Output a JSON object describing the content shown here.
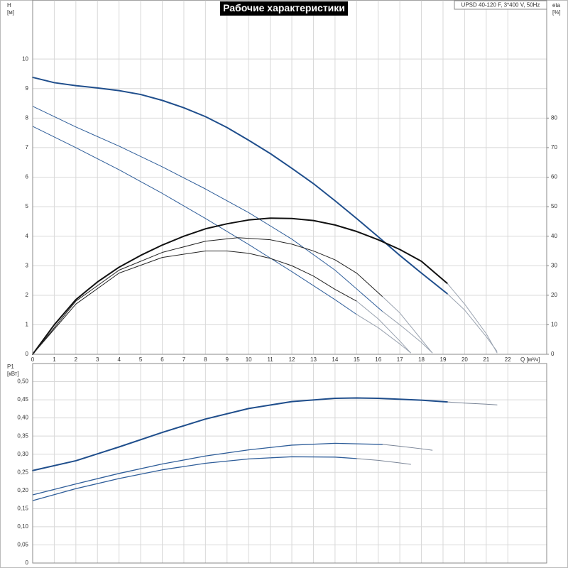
{
  "chart_data": [
    {
      "type": "line",
      "title": "Рабочие характеристики",
      "subtitle": "UPSD 40-120 F, 3*400 V, 50Hz",
      "xlabel": "Q [м³/ч]",
      "ylabel": "H",
      "yunit": "[м]",
      "y2label": "eta",
      "y2unit": "[%]",
      "xlim": [
        0,
        23.8
      ],
      "xticks": [
        0,
        1,
        2,
        3,
        4,
        5,
        6,
        7,
        8,
        9,
        10,
        11,
        12,
        13,
        14,
        15,
        16,
        17,
        18,
        19,
        20,
        21,
        22
      ],
      "ylim": [
        0,
        12
      ],
      "yticks": [
        0,
        1,
        2,
        3,
        4,
        5,
        6,
        7,
        8,
        9,
        10
      ],
      "y2lim": [
        0,
        120
      ],
      "y2ticks": [
        0,
        10,
        20,
        30,
        40,
        50,
        60,
        70,
        80
      ],
      "grid": true,
      "series": [
        {
          "color": "#1f4e8c",
          "width": 2,
          "x": [
            0,
            1,
            2,
            3,
            4,
            5,
            6,
            7,
            8,
            9,
            10,
            11,
            12,
            13,
            14,
            15,
            16,
            17,
            18,
            19.2
          ],
          "values": [
            9.38,
            9.2,
            9.1,
            9.02,
            8.93,
            8.8,
            8.6,
            8.35,
            8.05,
            7.68,
            7.25,
            6.8,
            6.3,
            5.78,
            5.2,
            4.6,
            3.98,
            3.35,
            2.75,
            2.05
          ]
        },
        {
          "color": "#9aa3b0",
          "width": 1,
          "x": [
            19.2,
            20,
            21,
            21.5
          ],
          "values": [
            2.05,
            1.5,
            0.6,
            0.1
          ]
        },
        {
          "color": "#2e5d99",
          "width": 1,
          "x": [
            0,
            2,
            4,
            6,
            8,
            10,
            12,
            14,
            16.2
          ],
          "values": [
            8.4,
            7.7,
            7.05,
            6.35,
            5.6,
            4.8,
            3.9,
            2.85,
            1.45
          ]
        },
        {
          "color": "#9aa3b0",
          "width": 1,
          "x": [
            16.2,
            17,
            18,
            18.5
          ],
          "values": [
            1.45,
            1.0,
            0.4,
            0.05
          ]
        },
        {
          "color": "#2e5d99",
          "width": 1,
          "x": [
            0,
            2,
            4,
            6,
            8,
            10,
            12,
            14,
            15
          ],
          "values": [
            7.72,
            7.0,
            6.25,
            5.45,
            4.6,
            3.72,
            2.8,
            1.85,
            1.35
          ]
        },
        {
          "color": "#9aa3b0",
          "width": 1,
          "x": [
            15,
            16,
            17,
            17.5
          ],
          "values": [
            1.35,
            0.9,
            0.35,
            0.05
          ]
        },
        {
          "color": "#111111",
          "width": 2,
          "axis": "y2",
          "x": [
            0,
            1,
            2,
            3,
            4,
            5,
            6,
            7,
            8,
            9,
            10,
            11,
            12,
            13,
            14,
            15,
            16,
            17,
            18,
            19.2
          ],
          "values": [
            0,
            10,
            18.5,
            24.5,
            29.5,
            33.5,
            37,
            40,
            42.5,
            44.2,
            45.5,
            46.1,
            46,
            45.3,
            43.8,
            41.6,
            38.8,
            35.5,
            31.5,
            24
          ]
        },
        {
          "color": "#9aa3b0",
          "width": 1,
          "axis": "y2",
          "x": [
            19.2,
            20,
            21,
            21.5
          ],
          "values": [
            24,
            17,
            7,
            0.5
          ]
        },
        {
          "color": "#222222",
          "width": 1,
          "axis": "y2",
          "x": [
            0,
            2,
            4,
            6,
            8,
            9.5,
            11,
            12,
            13,
            14,
            15,
            16.2
          ],
          "values": [
            0,
            18,
            28.5,
            34.5,
            38.3,
            39.5,
            38.8,
            37.3,
            35,
            32,
            27.5,
            19.5
          ]
        },
        {
          "color": "#9aa3b0",
          "width": 1,
          "axis": "y2",
          "x": [
            16.2,
            17,
            18,
            18.5
          ],
          "values": [
            19.5,
            14,
            5,
            0.5
          ]
        },
        {
          "color": "#222222",
          "width": 1,
          "axis": "y2",
          "x": [
            0,
            2,
            4,
            6,
            8,
            9,
            10,
            11,
            12,
            13,
            14,
            15
          ],
          "values": [
            0,
            17,
            27.5,
            32.8,
            35,
            35,
            34.2,
            32.5,
            30,
            26.5,
            22,
            18
          ]
        },
        {
          "color": "#9aa3b0",
          "width": 1,
          "axis": "y2",
          "x": [
            15,
            16,
            17,
            17.5
          ],
          "values": [
            18,
            12,
            4.5,
            0.5
          ]
        }
      ]
    },
    {
      "type": "line",
      "ylabel": "P1",
      "yunit": "[кВт]",
      "xlim": [
        0,
        23.8
      ],
      "ylim": [
        0,
        0.55
      ],
      "yticks": [
        0,
        {
          "value": 0.05,
          "label": "0,05"
        },
        {
          "value": 0.1,
          "label": "0,10"
        },
        {
          "value": 0.15,
          "label": "0,15"
        },
        {
          "value": 0.2,
          "label": "0,20"
        },
        {
          "value": 0.25,
          "label": "0,25"
        },
        {
          "value": 0.3,
          "label": "0,30"
        },
        {
          "value": 0.35,
          "label": "0,35"
        },
        {
          "value": 0.4,
          "label": "0,40"
        },
        {
          "value": 0.45,
          "label": "0,45"
        },
        {
          "value": 0.5,
          "label": "0,50"
        }
      ],
      "grid": true,
      "series": [
        {
          "color": "#1f4e8c",
          "width": 2,
          "x": [
            0,
            2,
            4,
            6,
            8,
            10,
            12,
            14,
            15,
            16,
            18,
            19.2
          ],
          "values": [
            0.255,
            0.282,
            0.32,
            0.36,
            0.397,
            0.426,
            0.445,
            0.454,
            0.455,
            0.454,
            0.449,
            0.444
          ]
        },
        {
          "color": "#7a8597",
          "width": 1,
          "x": [
            19.2,
            20,
            21,
            21.5
          ],
          "values": [
            0.444,
            0.441,
            0.438,
            0.436
          ]
        },
        {
          "color": "#2e5d99",
          "width": 1.3,
          "x": [
            0,
            2,
            4,
            6,
            8,
            10,
            12,
            14,
            16.2
          ],
          "values": [
            0.188,
            0.218,
            0.247,
            0.273,
            0.295,
            0.312,
            0.325,
            0.33,
            0.327
          ]
        },
        {
          "color": "#7a8597",
          "width": 1,
          "x": [
            16.2,
            17,
            18,
            18.5
          ],
          "values": [
            0.327,
            0.322,
            0.315,
            0.311
          ]
        },
        {
          "color": "#2e5d99",
          "width": 1.3,
          "x": [
            0,
            2,
            4,
            6,
            8,
            10,
            12,
            14,
            15
          ],
          "values": [
            0.172,
            0.205,
            0.233,
            0.257,
            0.275,
            0.287,
            0.293,
            0.292,
            0.288
          ]
        },
        {
          "color": "#7a8597",
          "width": 1,
          "x": [
            15,
            16,
            17,
            17.5
          ],
          "values": [
            0.288,
            0.283,
            0.276,
            0.272
          ]
        }
      ]
    }
  ]
}
